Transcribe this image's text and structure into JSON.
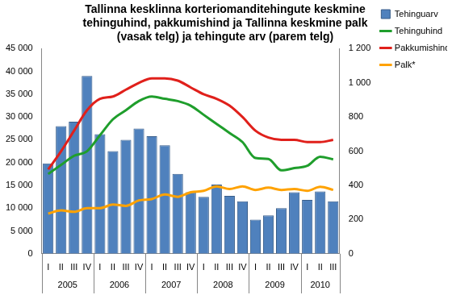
{
  "chart_data": {
    "type": "bar",
    "title": [
      "Tallinna kesklinna korteriomanditehingute keskmine",
      "tehinguhind, pakkumishind ja Tallinna keskmine palk",
      "(vasak telg) ja tehingute arv (parem telg)"
    ],
    "categories": [
      "I",
      "II",
      "III",
      "IV",
      "I",
      "II",
      "III",
      "IV",
      "I",
      "II",
      "III",
      "IV",
      "I",
      "II",
      "III",
      "IV",
      "I",
      "II",
      "III",
      "IV",
      "I",
      "II",
      "III"
    ],
    "category_groups": [
      {
        "name": "2005",
        "size": 4
      },
      {
        "name": "2006",
        "size": 4
      },
      {
        "name": "2007",
        "size": 4
      },
      {
        "name": "2008",
        "size": 4
      },
      {
        "name": "2009",
        "size": 4
      },
      {
        "name": "2010",
        "size": 3
      }
    ],
    "series": [
      {
        "name": "Tehinguarv",
        "type": "bar",
        "axis": "y2",
        "color": "#4f81bd",
        "values": [
          528,
          747,
          773,
          1040,
          699,
          600,
          667,
          733,
          688,
          635,
          467,
          360,
          333,
          405,
          339,
          307,
          200,
          224,
          267,
          360,
          315,
          365,
          307
        ]
      },
      {
        "name": "Tehinguhind",
        "type": "line",
        "color": "#1f9e2c",
        "values": [
          17500,
          19500,
          21500,
          22500,
          26000,
          29500,
          31500,
          33500,
          34500,
          34000,
          33500,
          32500,
          30500,
          28500,
          26500,
          24500,
          21000,
          20800,
          18300,
          18800,
          19300,
          21300,
          20700
        ]
      },
      {
        "name": "Pakkumishind",
        "type": "line",
        "color": "#e0201b",
        "values": [
          18500,
          22500,
          27000,
          31500,
          34000,
          34500,
          36000,
          37500,
          38500,
          38500,
          38000,
          36500,
          35000,
          34000,
          32500,
          30000,
          27000,
          25500,
          25000,
          25000,
          24500,
          24500,
          25000
        ]
      },
      {
        "name": "Palk*",
        "type": "line",
        "color": "#ffa200",
        "values": [
          8800,
          9500,
          9200,
          10000,
          10000,
          10800,
          10500,
          11700,
          12000,
          13000,
          12500,
          13500,
          13800,
          14800,
          14200,
          14800,
          14000,
          14500,
          14000,
          14200,
          13800,
          14700,
          14000
        ]
      }
    ],
    "ylim": [
      0,
      45000
    ],
    "yticks": [
      0,
      {
        "value": 5000,
        "label": "5 000"
      },
      {
        "value": 10000,
        "label": "10 000"
      },
      {
        "value": 15000,
        "label": "15 000"
      },
      {
        "value": 20000,
        "label": "20 000"
      },
      {
        "value": 25000,
        "label": "25 000"
      },
      {
        "value": 30000,
        "label": "30 000"
      },
      {
        "value": 35000,
        "label": "35 000"
      },
      {
        "value": 40000,
        "label": "40 000"
      },
      {
        "value": 45000,
        "label": "45 000"
      }
    ],
    "y2lim": [
      0,
      1200
    ],
    "y2ticks": [
      0,
      200,
      400,
      600,
      800,
      {
        "value": 1000,
        "label": "1 000"
      },
      {
        "value": 1200,
        "label": "1 200"
      }
    ],
    "grid": false,
    "legend": "right"
  }
}
